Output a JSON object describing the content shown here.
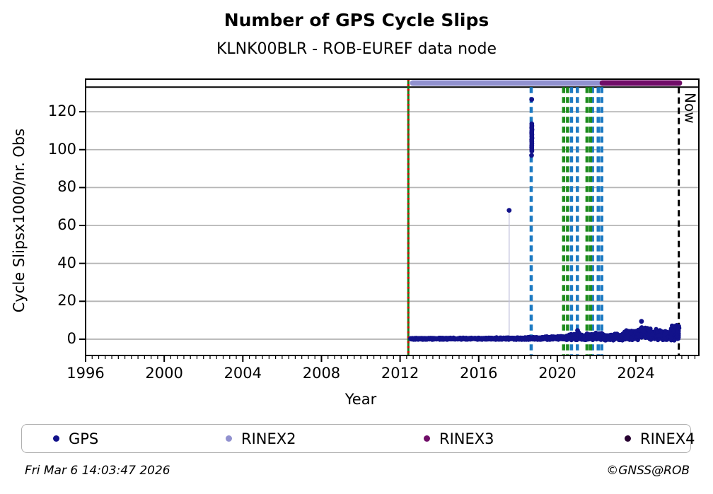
{
  "header": {
    "title": "Number of GPS Cycle Slips",
    "subtitle": "KLNK00BLR - ROB-EUREF data node"
  },
  "footer": {
    "timestamp": "Fri Mar  6 14:03:47 2026",
    "credit": "©GNSS@ROB"
  },
  "legend": {
    "items": [
      {
        "label": "GPS",
        "color": "#12128a"
      },
      {
        "label": "RINEX2",
        "color": "#9191cf"
      },
      {
        "label": "RINEX3",
        "color": "#700d68"
      },
      {
        "label": "RINEX4",
        "color": "#270131"
      }
    ]
  },
  "chart_data": {
    "type": "scatter",
    "title": "Number of GPS Cycle Slips",
    "subtitle": "KLNK00BLR - ROB-EUREF data node",
    "xlabel": "Year",
    "ylabel": "Cycle Slipsx1000/nr. Obs",
    "xlim": [
      1996,
      2027.2
    ],
    "ylim": [
      -8.6,
      137.2
    ],
    "x_major_ticks": [
      1996,
      2000,
      2004,
      2008,
      2012,
      2016,
      2020,
      2024
    ],
    "x_minor_tick_step": 0.33333,
    "y_ticks": [
      0,
      20,
      40,
      60,
      80,
      100,
      120
    ],
    "grid": "horizontal",
    "grid_color": "#b5b5b5",
    "top_strip_value": 133,
    "colors": {
      "gps": "#12128a",
      "blue_event": "#1d7ac2",
      "green_event": "#1e8c1e",
      "green_solid": "#167d16",
      "red_dash": "#e00000",
      "now_line": "#000000",
      "stem": "#c3c3de"
    },
    "availability_bars": [
      {
        "name": "RINEX2",
        "start": 2012.5,
        "end": 2022.3,
        "color": "#9191cf"
      },
      {
        "name": "RINEX3",
        "start": 2022.15,
        "end": 2026.35,
        "color": "#700d68"
      }
    ],
    "event_lines": {
      "green_solid": [
        2012.42
      ],
      "red_dashed": [
        2012.42
      ],
      "blue_dashed": [
        2018.67,
        2020.72,
        2021.02,
        2021.79,
        2022.08,
        2022.26
      ],
      "green_dashed": [
        2020.32,
        2020.52,
        2021.51,
        2021.69
      ],
      "now_line": {
        "year": 2026.18,
        "label": "Now"
      }
    },
    "gps_outliers": [
      [
        2017.55,
        68
      ],
      [
        2018.695,
        126.5
      ],
      [
        2018.7,
        113.6
      ],
      [
        2018.705,
        112.5
      ],
      [
        2018.695,
        111.5
      ],
      [
        2018.71,
        110.6
      ],
      [
        2018.7,
        109.7
      ],
      [
        2018.695,
        108.8
      ],
      [
        2018.705,
        107.9
      ],
      [
        2018.7,
        107.0
      ],
      [
        2018.71,
        106.1
      ],
      [
        2018.695,
        105.2
      ],
      [
        2018.7,
        104.3
      ],
      [
        2018.705,
        103.3
      ],
      [
        2018.7,
        102.3
      ],
      [
        2018.695,
        101.3
      ],
      [
        2018.7,
        100.3
      ],
      [
        2018.705,
        99.3
      ],
      [
        2018.69,
        97.0
      ],
      [
        2021.03,
        4.6
      ],
      [
        2024.28,
        9.4
      ]
    ],
    "stems": [
      [
        2017.55,
        68
      ]
    ],
    "gps_band_segments": [
      {
        "from": 2012.52,
        "to": 2014.0,
        "base": 0.2,
        "half": 0.5
      },
      {
        "from": 2014.0,
        "to": 2016.5,
        "base": 0.25,
        "half": 0.55
      },
      {
        "from": 2016.5,
        "to": 2018.2,
        "base": 0.3,
        "half": 0.65
      },
      {
        "from": 2018.2,
        "to": 2019.3,
        "base": 0.4,
        "half": 0.8
      },
      {
        "from": 2019.3,
        "to": 2020.0,
        "base": 0.55,
        "half": 1.0
      },
      {
        "from": 2020.0,
        "to": 2020.55,
        "base": 0.7,
        "half": 1.2
      },
      {
        "from": 2020.55,
        "to": 2020.85,
        "base": 1.1,
        "half": 1.7
      },
      {
        "from": 2020.85,
        "to": 2021.15,
        "base": 1.5,
        "half": 2.2
      },
      {
        "from": 2021.15,
        "to": 2021.5,
        "base": 0.9,
        "half": 1.5
      },
      {
        "from": 2021.5,
        "to": 2021.95,
        "base": 1.2,
        "half": 1.9
      },
      {
        "from": 2021.95,
        "to": 2022.35,
        "base": 1.4,
        "half": 2.2
      },
      {
        "from": 2022.35,
        "to": 2022.9,
        "base": 1.0,
        "half": 1.8
      },
      {
        "from": 2022.9,
        "to": 2023.4,
        "base": 1.4,
        "half": 2.2
      },
      {
        "from": 2023.4,
        "to": 2024.05,
        "base": 2.0,
        "half": 2.9
      },
      {
        "from": 2024.05,
        "to": 2024.6,
        "base": 3.0,
        "half": 3.6
      },
      {
        "from": 2024.6,
        "to": 2025.05,
        "base": 2.4,
        "half": 3.2
      },
      {
        "from": 2025.05,
        "to": 2025.75,
        "base": 2.1,
        "half": 2.9
      },
      {
        "from": 2025.75,
        "to": 2026.22,
        "base": 3.5,
        "half": 4.6
      }
    ]
  }
}
